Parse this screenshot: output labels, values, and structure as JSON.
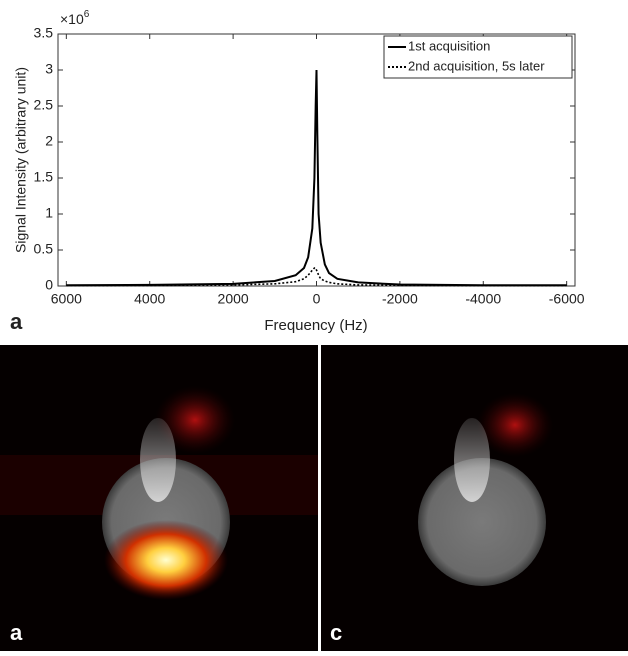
{
  "chart_data": {
    "type": "line",
    "y_label": "Signal Intensity (arbitrary unit)",
    "x_label": "Frequency (Hz)",
    "y_multiplier": "×10",
    "y_multiplier_exponent": "6",
    "panel_label": "a",
    "x": [
      6000,
      4000,
      2000,
      1000,
      500,
      300,
      200,
      100,
      50,
      20,
      0,
      -20,
      -50,
      -100,
      -200,
      -300,
      -500,
      -1000,
      -2000,
      -4000,
      -6000
    ],
    "series": [
      {
        "name": "1st acquisition",
        "color": "#000000",
        "style": "solid",
        "values": [
          0.01,
          0.015,
          0.03,
          0.07,
          0.15,
          0.25,
          0.4,
          0.8,
          1.5,
          2.5,
          3.0,
          2.1,
          1.0,
          0.6,
          0.3,
          0.18,
          0.1,
          0.05,
          0.02,
          0.01,
          0.01
        ]
      },
      {
        "name": "2nd acquisition, 5s later",
        "color": "#000000",
        "style": "dotted",
        "values": [
          0.005,
          0.008,
          0.015,
          0.03,
          0.06,
          0.1,
          0.15,
          0.22,
          0.25,
          0.25,
          0.22,
          0.2,
          0.15,
          0.1,
          0.07,
          0.05,
          0.03,
          0.015,
          0.01,
          0.005,
          0.005
        ]
      }
    ],
    "xlim": [
      6200,
      -6200
    ],
    "ylim": [
      0,
      3.5
    ],
    "xticks": [
      6000,
      4000,
      2000,
      0,
      -2000,
      -4000,
      -6000
    ],
    "yticks": [
      0,
      0.5,
      1,
      1.5,
      2,
      2.5,
      3,
      3.5
    ],
    "legend": "top-right"
  },
  "images": [
    {
      "label": "a"
    },
    {
      "label": "c"
    }
  ]
}
